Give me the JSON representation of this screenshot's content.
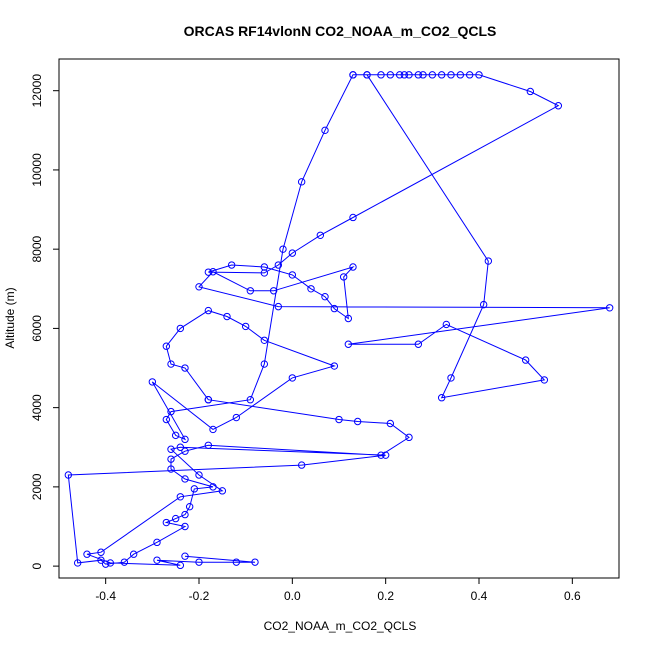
{
  "chart_data": {
    "type": "line",
    "title": "ORCAS RF14vlonN CO2_NOAA_m_CO2_QCLS",
    "xlabel": "CO2_NOAA_m_CO2_QCLS",
    "ylabel": "Altitude (m)",
    "xlim": [
      -0.5,
      0.7
    ],
    "ylim": [
      -300,
      12800
    ],
    "x_ticks": [
      -0.4,
      -0.2,
      0.0,
      0.2,
      0.4,
      0.6
    ],
    "x_tick_labels": [
      "-0.4",
      "-0.2",
      "0.0",
      "0.2",
      "0.4",
      "0.6"
    ],
    "y_ticks": [
      0,
      2000,
      4000,
      6000,
      8000,
      10000,
      12000
    ],
    "y_tick_labels": [
      "0",
      "2000",
      "4000",
      "6000",
      "8000",
      "10000",
      "12000"
    ],
    "grid": false,
    "marker": "open-circle",
    "line_color": "#0000ff",
    "series": [
      {
        "x": [
          0.13,
          0.16,
          0.19,
          0.21,
          0.23,
          0.24,
          0.25,
          0.27,
          0.28,
          0.3,
          0.32,
          0.34,
          0.36,
          0.38,
          0.4,
          0.51,
          0.57,
          0.13,
          0.06,
          0.0,
          -0.03,
          -0.06,
          -0.18,
          -0.13,
          -0.06,
          0.0,
          0.04,
          0.07,
          0.09,
          0.12,
          0.11,
          0.13,
          -0.04,
          -0.09,
          -0.17,
          -0.2,
          -0.03,
          0.68,
          0.12,
          0.27,
          0.33,
          0.5,
          0.54,
          0.32,
          0.34,
          0.41,
          0.42,
          0.16,
          0.13,
          0.07,
          0.02,
          -0.02,
          -0.06,
          -0.09,
          -0.26,
          -0.27,
          -0.25,
          -0.23,
          -0.3,
          -0.17,
          -0.12,
          0.0,
          0.09,
          -0.06,
          -0.1,
          -0.14,
          -0.18,
          -0.24,
          -0.27,
          -0.26,
          -0.23,
          -0.18,
          -0.18,
          0.1,
          0.14,
          0.21,
          0.25,
          0.19,
          -0.18,
          -0.23,
          -0.26,
          -0.26,
          -0.23,
          -0.17,
          -0.21,
          -0.22,
          -0.23,
          -0.25,
          -0.27,
          -0.23,
          -0.29,
          -0.34,
          -0.36,
          -0.4,
          -0.41,
          -0.46,
          -0.48,
          0.02,
          0.2,
          -0.24,
          -0.26,
          -0.2,
          -0.15,
          -0.24,
          -0.41,
          -0.44,
          -0.39,
          -0.24,
          -0.29,
          -0.2,
          -0.12,
          -0.08,
          -0.23
        ],
        "y": [
          12400,
          12400,
          12400,
          12400,
          12400,
          12400,
          12400,
          12400,
          12400,
          12400,
          12400,
          12400,
          12400,
          12400,
          12400,
          11980,
          11620,
          8800,
          8350,
          7900,
          7600,
          7400,
          7420,
          7600,
          7550,
          7350,
          7000,
          6800,
          6500,
          6250,
          7300,
          7550,
          6950,
          6950,
          7430,
          7050,
          6550,
          6520,
          5600,
          5600,
          6100,
          5200,
          4700,
          4250,
          4750,
          6600,
          7700,
          12400,
          12400,
          11000,
          9700,
          8000,
          5100,
          4200,
          3900,
          3700,
          3300,
          3200,
          4650,
          3450,
          3750,
          4750,
          5050,
          5700,
          6050,
          6300,
          6450,
          6000,
          5550,
          5100,
          5000,
          4200,
          4200,
          3700,
          3650,
          3600,
          3250,
          2800,
          3050,
          2900,
          2700,
          2450,
          2200,
          2000,
          1950,
          1500,
          1300,
          1200,
          1100,
          1000,
          600,
          300,
          100,
          50,
          150,
          80,
          2300,
          2550,
          2800,
          3000,
          2950,
          2300,
          1900,
          1750,
          350,
          300,
          80,
          20,
          150,
          100,
          100,
          100,
          250
        ]
      }
    ]
  }
}
